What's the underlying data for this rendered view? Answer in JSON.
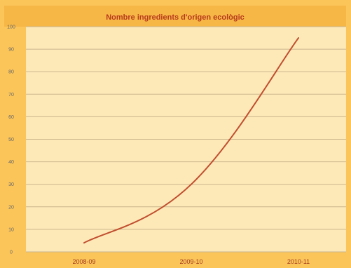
{
  "chart_data": {
    "type": "line",
    "title": "Nombre ingredients d'origen ecològic",
    "xlabel": "",
    "ylabel": "",
    "categories": [
      "2008-09",
      "2009-10",
      "2010-11"
    ],
    "series": [
      {
        "values": [
          4,
          30,
          95
        ]
      }
    ],
    "ylim": [
      0,
      100
    ],
    "yticks": [
      0,
      10,
      20,
      30,
      40,
      50,
      60,
      70,
      80,
      90,
      100
    ],
    "grid": true,
    "legend": "none",
    "colors": {
      "frame": "#fbc55a",
      "plot_background": "#fde9b8",
      "title_band": "#f7b746",
      "grid": "#c9b58a",
      "line": "#c14e2e",
      "title_text": "#b73a1c",
      "x_tick_text": "#a33a1e"
    }
  }
}
